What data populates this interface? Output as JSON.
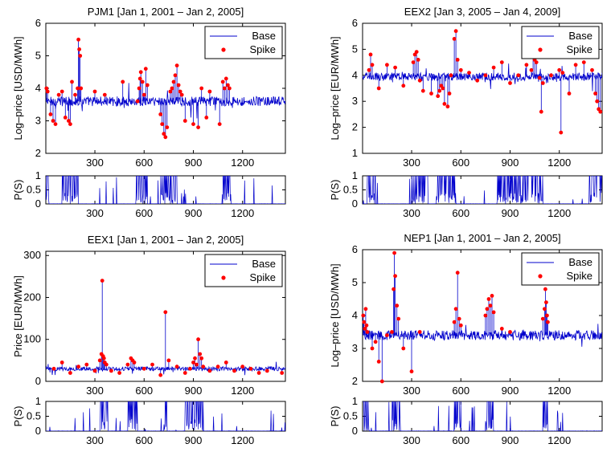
{
  "chart_data": [
    {
      "type": "line",
      "title": "PJM1 [Jan 1, 2001 – Jan 2, 2005]",
      "ylabel": "Log–price [USD/MWh]",
      "xlim": [
        1,
        1461
      ],
      "ylim": [
        2,
        6
      ],
      "xticks": [
        300,
        600,
        900,
        1200
      ],
      "yticks": [
        2,
        3,
        4,
        5,
        6
      ],
      "legend": {
        "position": "top-right",
        "entries": [
          "Base",
          "Spike"
        ]
      },
      "series": [
        {
          "name": "Base",
          "kind": "line",
          "color": "#0000cc",
          "level": 3.6,
          "amplitude": 0.15,
          "spike_windows": [
            [
              0,
              20
            ],
            [
              100,
              200
            ],
            [
              550,
              620
            ],
            [
              700,
              800
            ],
            [
              1080,
              1130
            ]
          ]
        },
        {
          "name": "Spike",
          "kind": "scatter",
          "color": "#ff0000",
          "points": [
            [
              5,
              4.0
            ],
            [
              12,
              3.9
            ],
            [
              30,
              3.2
            ],
            [
              45,
              3.0
            ],
            [
              60,
              2.9
            ],
            [
              80,
              3.8
            ],
            [
              100,
              3.9
            ],
            [
              120,
              3.1
            ],
            [
              140,
              3.0
            ],
            [
              150,
              2.9
            ],
            [
              160,
              4.2
            ],
            [
              180,
              3.8
            ],
            [
              195,
              4.0
            ],
            [
              200,
              5.5
            ],
            [
              205,
              5.2
            ],
            [
              210,
              5.0
            ],
            [
              215,
              4.0
            ],
            [
              300,
              3.9
            ],
            [
              360,
              3.8
            ],
            [
              470,
              4.2
            ],
            [
              560,
              3.6
            ],
            [
              570,
              4.0
            ],
            [
              575,
              4.3
            ],
            [
              580,
              4.5
            ],
            [
              590,
              4.2
            ],
            [
              600,
              3.8
            ],
            [
              610,
              4.6
            ],
            [
              620,
              4.1
            ],
            [
              700,
              3.2
            ],
            [
              710,
              2.9
            ],
            [
              720,
              2.6
            ],
            [
              730,
              2.5
            ],
            [
              740,
              2.8
            ],
            [
              760,
              3.9
            ],
            [
              770,
              4.0
            ],
            [
              780,
              4.2
            ],
            [
              790,
              4.4
            ],
            [
              800,
              4.7
            ],
            [
              810,
              4.1
            ],
            [
              820,
              3.9
            ],
            [
              830,
              3.8
            ],
            [
              850,
              3.0
            ],
            [
              900,
              2.9
            ],
            [
              930,
              2.8
            ],
            [
              950,
              4.0
            ],
            [
              980,
              3.1
            ],
            [
              1000,
              3.9
            ],
            [
              1060,
              2.9
            ],
            [
              1080,
              4.2
            ],
            [
              1090,
              4.0
            ],
            [
              1100,
              4.3
            ],
            [
              1110,
              4.1
            ],
            [
              1120,
              4.0
            ]
          ]
        }
      ],
      "probability_panel": {
        "ylabel": "P(S)",
        "xlim": [
          1,
          1461
        ],
        "ylim": [
          0,
          1
        ],
        "yticks": [
          0,
          0.5,
          1
        ],
        "xticks": [
          300,
          600,
          900,
          1200
        ],
        "spike_windows": [
          [
            0,
            20
          ],
          [
            100,
            200
          ],
          [
            550,
            620
          ],
          [
            700,
            800
          ],
          [
            1080,
            1130
          ]
        ]
      }
    },
    {
      "type": "line",
      "title": "EEX2 [Jan 3, 2005 – Jan 4, 2009]",
      "ylabel": "Log–price [EUR/MWh]",
      "xlim": [
        1,
        1461
      ],
      "ylim": [
        1,
        6
      ],
      "xticks": [
        300,
        600,
        900,
        1200
      ],
      "yticks": [
        1,
        2,
        3,
        4,
        5,
        6
      ],
      "legend": {
        "position": "top-right",
        "entries": [
          "Base",
          "Spike"
        ]
      },
      "series": [
        {
          "name": "Base",
          "kind": "line",
          "color": "#0000cc",
          "level": 3.95,
          "amplitude": 0.15,
          "spike_windows": [
            [
              30,
              80
            ],
            [
              300,
              400
            ],
            [
              450,
              570
            ],
            [
              820,
              1100
            ],
            [
              1380,
              1461
            ]
          ]
        },
        {
          "name": "Spike",
          "kind": "scatter",
          "color": "#ff0000",
          "points": [
            [
              40,
              4.2
            ],
            [
              50,
              4.8
            ],
            [
              60,
              4.4
            ],
            [
              100,
              3.5
            ],
            [
              150,
              4.4
            ],
            [
              200,
              4.3
            ],
            [
              250,
              3.6
            ],
            [
              310,
              4.5
            ],
            [
              320,
              4.8
            ],
            [
              330,
              4.9
            ],
            [
              340,
              4.6
            ],
            [
              350,
              3.8
            ],
            [
              370,
              3.4
            ],
            [
              420,
              3.3
            ],
            [
              460,
              3.2
            ],
            [
              470,
              3.4
            ],
            [
              480,
              3.6
            ],
            [
              490,
              3.5
            ],
            [
              500,
              2.9
            ],
            [
              520,
              2.8
            ],
            [
              530,
              3.3
            ],
            [
              540,
              4.0
            ],
            [
              560,
              5.4
            ],
            [
              570,
              5.7
            ],
            [
              580,
              4.6
            ],
            [
              600,
              4.2
            ],
            [
              650,
              4.1
            ],
            [
              700,
              3.8
            ],
            [
              750,
              4.0
            ],
            [
              800,
              4.3
            ],
            [
              850,
              4.5
            ],
            [
              900,
              3.7
            ],
            [
              950,
              4.0
            ],
            [
              1000,
              4.4
            ],
            [
              1030,
              4.2
            ],
            [
              1040,
              4.8
            ],
            [
              1050,
              4.6
            ],
            [
              1060,
              4.5
            ],
            [
              1080,
              3.9
            ],
            [
              1090,
              2.6
            ],
            [
              1100,
              3.7
            ],
            [
              1150,
              4.0
            ],
            [
              1200,
              4.2
            ],
            [
              1210,
              1.8
            ],
            [
              1220,
              4.1
            ],
            [
              1260,
              3.3
            ],
            [
              1300,
              4.4
            ],
            [
              1350,
              4.5
            ],
            [
              1400,
              4.2
            ],
            [
              1420,
              3.3
            ],
            [
              1430,
              3.0
            ],
            [
              1440,
              2.7
            ],
            [
              1450,
              2.6
            ]
          ]
        }
      ],
      "probability_panel": {
        "ylabel": "P(S)",
        "xlim": [
          1,
          1461
        ],
        "ylim": [
          0,
          1
        ],
        "yticks": [
          0,
          0.5,
          1
        ],
        "xticks": [
          300,
          600,
          900,
          1200
        ],
        "spike_windows": [
          [
            30,
            80
          ],
          [
            300,
            400
          ],
          [
            450,
            570
          ],
          [
            820,
            1100
          ],
          [
            1380,
            1461
          ]
        ]
      }
    },
    {
      "type": "line",
      "title": "EEX1 [Jan 1, 2001 – Jan 2, 2005]",
      "ylabel": "Price [EUR/MWh]",
      "xlim": [
        1,
        1461
      ],
      "ylim": [
        0,
        310
      ],
      "xticks": [
        300,
        600,
        900,
        1200
      ],
      "yticks": [
        0,
        100,
        200,
        300
      ],
      "legend": {
        "position": "top-right",
        "entries": [
          "Base",
          "Spike"
        ]
      },
      "series": [
        {
          "name": "Base",
          "kind": "line",
          "color": "#0000cc",
          "level": 30,
          "amplitude": 5,
          "spike_windows": [
            [
              330,
              380
            ],
            [
              500,
              560
            ],
            [
              720,
              740
            ],
            [
              850,
              960
            ]
          ]
        },
        {
          "name": "Spike",
          "kind": "scatter",
          "color": "#ff0000",
          "points": [
            [
              50,
              30
            ],
            [
              100,
              45
            ],
            [
              150,
              20
            ],
            [
              200,
              35
            ],
            [
              250,
              40
            ],
            [
              300,
              25
            ],
            [
              330,
              50
            ],
            [
              340,
              65
            ],
            [
              345,
              240
            ],
            [
              350,
              60
            ],
            [
              355,
              55
            ],
            [
              360,
              45
            ],
            [
              370,
              40
            ],
            [
              400,
              25
            ],
            [
              450,
              20
            ],
            [
              500,
              40
            ],
            [
              520,
              55
            ],
            [
              530,
              50
            ],
            [
              540,
              45
            ],
            [
              600,
              30
            ],
            [
              650,
              40
            ],
            [
              700,
              15
            ],
            [
              730,
              165
            ],
            [
              750,
              50
            ],
            [
              800,
              35
            ],
            [
              850,
              20
            ],
            [
              880,
              30
            ],
            [
              900,
              45
            ],
            [
              910,
              55
            ],
            [
              920,
              40
            ],
            [
              930,
              100
            ],
            [
              940,
              65
            ],
            [
              950,
              55
            ],
            [
              960,
              35
            ],
            [
              1000,
              25
            ],
            [
              1050,
              35
            ],
            [
              1100,
              45
            ],
            [
              1150,
              25
            ],
            [
              1200,
              35
            ],
            [
              1250,
              30
            ],
            [
              1300,
              20
            ],
            [
              1350,
              25
            ],
            [
              1440,
              20
            ]
          ]
        }
      ],
      "probability_panel": {
        "ylabel": "P(S)",
        "xlim": [
          1,
          1461
        ],
        "ylim": [
          0,
          1
        ],
        "yticks": [
          0,
          0.5,
          1
        ],
        "xticks": [
          300,
          600,
          900,
          1200
        ],
        "spike_windows": [
          [
            330,
            380
          ],
          [
            500,
            560
          ],
          [
            720,
            740
          ],
          [
            850,
            960
          ]
        ]
      }
    },
    {
      "type": "line",
      "title": "NEP1 [Jan 1, 2001 – Jan 2, 2005]",
      "ylabel": "Log–price [USD/MWh]",
      "xlim": [
        1,
        1461
      ],
      "ylim": [
        2,
        6
      ],
      "xticks": [
        300,
        600,
        900,
        1200
      ],
      "yticks": [
        2,
        3,
        4,
        5,
        6
      ],
      "legend": {
        "position": "top-right",
        "entries": [
          "Base",
          "Spike"
        ]
      },
      "series": [
        {
          "name": "Base",
          "kind": "line",
          "color": "#0000cc",
          "level": 3.4,
          "amplitude": 0.15,
          "spike_windows": [
            [
              0,
              40
            ],
            [
              180,
              230
            ],
            [
              560,
              600
            ],
            [
              750,
              800
            ],
            [
              1100,
              1130
            ]
          ]
        },
        {
          "name": "Spike",
          "kind": "scatter",
          "color": "#ff0000",
          "points": [
            [
              5,
              4.0
            ],
            [
              10,
              3.8
            ],
            [
              15,
              3.6
            ],
            [
              20,
              4.2
            ],
            [
              25,
              3.7
            ],
            [
              30,
              3.5
            ],
            [
              60,
              3.0
            ],
            [
              80,
              3.2
            ],
            [
              100,
              2.6
            ],
            [
              120,
              2.0
            ],
            [
              150,
              3.4
            ],
            [
              180,
              3.5
            ],
            [
              190,
              4.8
            ],
            [
              195,
              5.9
            ],
            [
              200,
              5.2
            ],
            [
              210,
              4.3
            ],
            [
              220,
              3.9
            ],
            [
              250,
              3.0
            ],
            [
              300,
              2.3
            ],
            [
              350,
              3.5
            ],
            [
              560,
              3.8
            ],
            [
              570,
              4.2
            ],
            [
              580,
              5.3
            ],
            [
              590,
              3.9
            ],
            [
              600,
              3.7
            ],
            [
              750,
              4.0
            ],
            [
              760,
              4.2
            ],
            [
              770,
              4.5
            ],
            [
              780,
              4.3
            ],
            [
              790,
              4.6
            ],
            [
              800,
              4.1
            ],
            [
              850,
              3.6
            ],
            [
              900,
              3.5
            ],
            [
              1100,
              3.9
            ],
            [
              1110,
              4.2
            ],
            [
              1115,
              4.8
            ],
            [
              1120,
              4.4
            ],
            [
              1125,
              4.0
            ],
            [
              1130,
              3.8
            ]
          ]
        }
      ],
      "probability_panel": {
        "ylabel": "P(S)",
        "xlim": [
          1,
          1461
        ],
        "ylim": [
          0,
          1
        ],
        "yticks": [
          0,
          0.5,
          1
        ],
        "xticks": [
          300,
          600,
          900,
          1200
        ],
        "spike_windows": [
          [
            0,
            40
          ],
          [
            180,
            230
          ],
          [
            560,
            600
          ],
          [
            750,
            800
          ],
          [
            1100,
            1130
          ]
        ]
      }
    }
  ]
}
